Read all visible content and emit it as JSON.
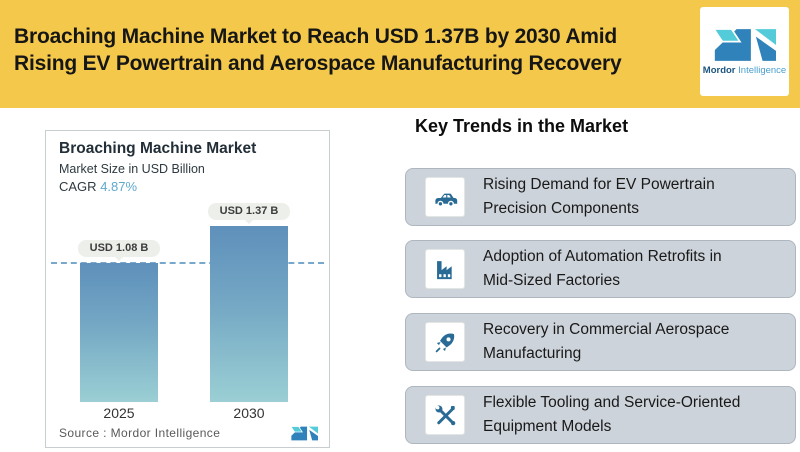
{
  "header": {
    "title_line1": "Broaching Machine Market to Reach USD 1.37B by 2030 Amid",
    "title_line2": "Rising EV Powertrain and Aerospace Manufacturing Recovery",
    "logo": {
      "brand_bold": "Mordor",
      "brand_light": "Intelligence"
    }
  },
  "chart_card": {
    "title": "Broaching Machine Market",
    "subtitle": "Market Size in USD Billion",
    "cagr_label": "CAGR",
    "cagr_value": "4.87%",
    "source_text": "Source :  Mordor Intelligence"
  },
  "chart_data": {
    "type": "bar",
    "title": "Broaching Machine Market",
    "ylabel": "Market Size in USD Billion",
    "cagr": "4.87%",
    "categories": [
      "2025",
      "2030"
    ],
    "values": [
      1.08,
      1.37
    ],
    "bar_labels": [
      "USD 1.08 B",
      "USD 1.37 B"
    ],
    "reference_line_value": 1.08,
    "reference_line_style": "dashed",
    "ylim": [
      0,
      1.37
    ],
    "grid": false,
    "legend": false
  },
  "trends": {
    "heading": "Key Trends in the Market",
    "items": [
      {
        "icon": "car-icon",
        "text": "Rising Demand for EV Powertrain\nPrecision Components"
      },
      {
        "icon": "factory-icon",
        "text": "Adoption of Automation Retrofits in\nMid-Sized Factories"
      },
      {
        "icon": "rocket-icon",
        "text": "Recovery in Commercial Aerospace\nManufacturing"
      },
      {
        "icon": "tools-icon",
        "text": "Flexible Tooling and Service-Oriented\nEquipment Models"
      }
    ]
  },
  "colors": {
    "header_bg": "#F3C84B",
    "icon_blue": "#2a6b96",
    "cagr_blue": "#5fa8cf",
    "bar_gradient_top": "#5e90bb",
    "bar_gradient_bottom": "#9bcfd4",
    "trend_card_bg": "#cdd3da",
    "logo_teal": "#53cbd8",
    "logo_blue": "#2f82ba",
    "dashed_line": "#78a9cd"
  }
}
